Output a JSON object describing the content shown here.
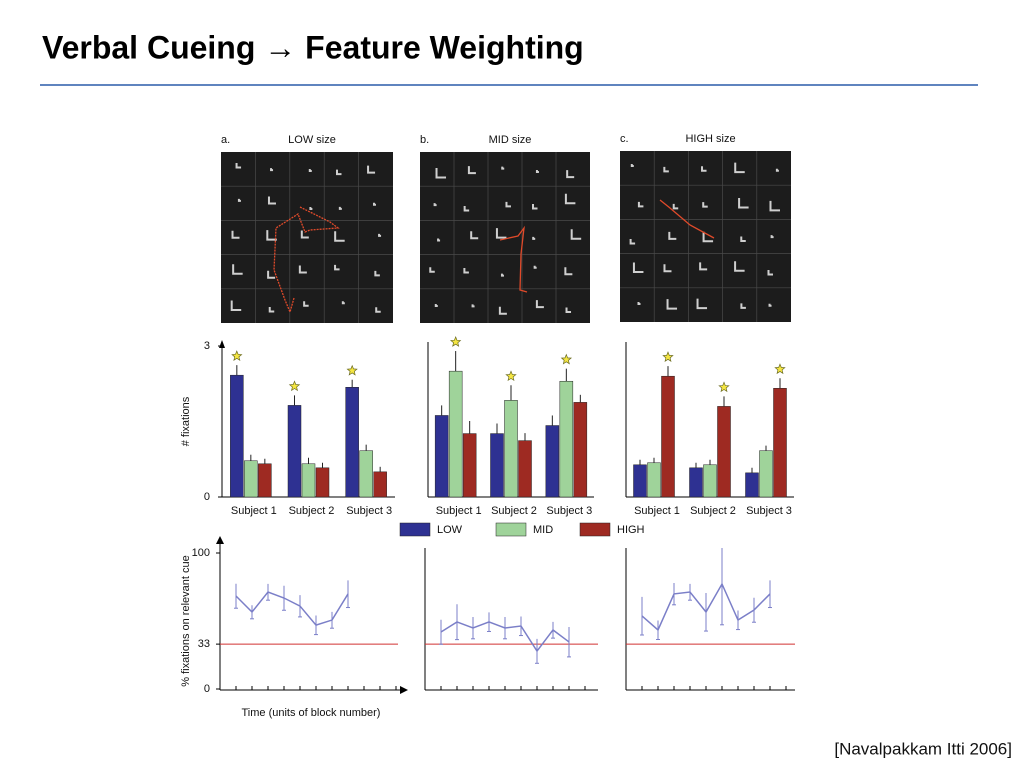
{
  "title": "Verbal Cueing → Feature Weighting",
  "citation": "[Navalpakkam Itti 2006]",
  "panels": [
    {
      "letter": "a.",
      "label": "LOW size"
    },
    {
      "letter": "b.",
      "label": "MID size"
    },
    {
      "letter": "c.",
      "label": "HIGH size"
    }
  ],
  "chart_data": [
    {
      "type": "bar",
      "ylabel": "# fixations",
      "categories": [
        "Subject 1",
        "Subject 2",
        "Subject 3"
      ],
      "ylim": [
        0,
        3
      ],
      "yticks": [
        0,
        3
      ],
      "series": [
        {
          "name": "LOW",
          "color": "#2e3192",
          "values": [
            2.42,
            1.82,
            2.18
          ],
          "errors": [
            0.2,
            0.2,
            0.15
          ]
        },
        {
          "name": "MID",
          "color": "#9fd39a",
          "values": [
            0.72,
            0.66,
            0.92
          ],
          "errors": [
            0.12,
            0.12,
            0.12
          ]
        },
        {
          "name": "HIGH",
          "color": "#9e2a22",
          "values": [
            0.66,
            0.58,
            0.5
          ],
          "errors": [
            0.1,
            0.1,
            0.1
          ]
        }
      ]
    },
    {
      "type": "bar",
      "categories": [
        "Subject 1",
        "Subject 2",
        "Subject 3"
      ],
      "ylim": [
        0,
        3
      ],
      "series": [
        {
          "values": [
            1.62,
            1.26,
            1.42
          ],
          "errors": [
            0.2,
            0.2,
            0.2
          ]
        },
        {
          "values": [
            2.5,
            1.92,
            2.3
          ],
          "errors": [
            0.4,
            0.3,
            0.25
          ]
        },
        {
          "values": [
            1.26,
            1.12,
            1.88
          ],
          "errors": [
            0.25,
            0.15,
            0.15
          ]
        }
      ]
    },
    {
      "type": "bar",
      "categories": [
        "Subject 1",
        "Subject 2",
        "Subject 3"
      ],
      "ylim": [
        0,
        3
      ],
      "series": [
        {
          "values": [
            0.64,
            0.58,
            0.48
          ],
          "errors": [
            0.1,
            0.1,
            0.1
          ]
        },
        {
          "values": [
            0.68,
            0.64,
            0.92
          ],
          "errors": [
            0.1,
            0.1,
            0.1
          ]
        },
        {
          "values": [
            2.4,
            1.8,
            2.16
          ],
          "errors": [
            0.2,
            0.2,
            0.2
          ]
        }
      ]
    },
    {
      "type": "line",
      "ylabel": "% fixations on relevant cue",
      "xlabel": "Time (units of block number)",
      "color": "#7b7fc8",
      "ylim": [
        0,
        100
      ],
      "yticks": [
        0,
        33,
        100
      ],
      "reference_line": 33,
      "reference_color": "#d03030",
      "categories": [
        null,
        null,
        null,
        null,
        null,
        null,
        null,
        null
      ],
      "values": [
        68.4,
        56.6,
        71.3,
        66.9,
        61,
        47,
        50.7,
        69.9
      ],
      "errors": [
        9,
        5,
        6,
        9,
        8,
        7,
        6,
        10
      ]
    },
    {
      "type": "line",
      "color": "#7b7fc8",
      "ylim": [
        0,
        100
      ],
      "reference_line": 33,
      "reference_color": "#d03030",
      "categories": [
        null,
        null,
        null,
        null,
        null,
        null,
        null,
        null,
        null
      ],
      "values": [
        41.9,
        49.3,
        44.9,
        49.3,
        44.9,
        46.3,
        27.9,
        43.4,
        34.6
      ],
      "errors": [
        9,
        13,
        8,
        7,
        8,
        7,
        9,
        6,
        11
      ]
    },
    {
      "type": "line",
      "color": "#7b7fc8",
      "ylim": [
        0,
        100
      ],
      "reference_line": 33,
      "reference_color": "#d03030",
      "categories": [
        null,
        null,
        null,
        null,
        null,
        null,
        null,
        null,
        null
      ],
      "values": [
        53.7,
        43.4,
        69.9,
        71.3,
        56.6,
        77.2,
        50.7,
        58.1,
        69.9
      ],
      "errors": [
        14,
        7,
        8,
        6,
        14,
        30,
        7,
        9,
        10
      ]
    }
  ]
}
